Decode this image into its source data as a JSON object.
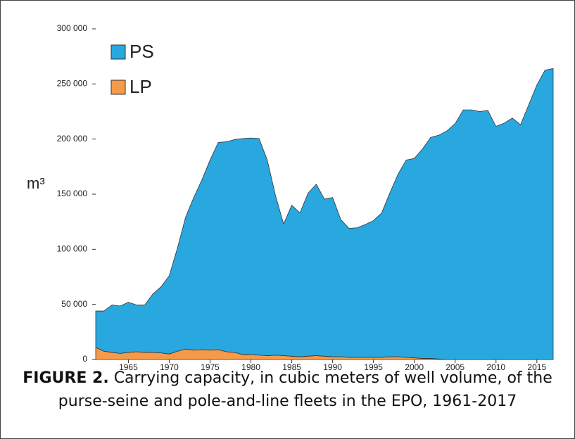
{
  "chart_data": {
    "type": "stacked_area",
    "y_label": "m³",
    "x": [
      1961,
      1962,
      1963,
      1964,
      1965,
      1966,
      1967,
      1968,
      1969,
      1970,
      1971,
      1972,
      1973,
      1974,
      1975,
      1976,
      1977,
      1978,
      1979,
      1980,
      1981,
      1982,
      1983,
      1984,
      1985,
      1986,
      1987,
      1988,
      1989,
      1990,
      1991,
      1992,
      1993,
      1994,
      1995,
      1996,
      1997,
      1998,
      1999,
      2000,
      2001,
      2002,
      2003,
      2004,
      2005,
      2006,
      2007,
      2008,
      2009,
      2010,
      2011,
      2012,
      2013,
      2014,
      2015,
      2016,
      2017
    ],
    "series": [
      {
        "name": "PS",
        "color": "#29a8e0",
        "values": [
          33000,
          36500,
          43000,
          43000,
          45500,
          42500,
          43000,
          53000,
          60000,
          71000,
          93500,
          119500,
          138500,
          154000,
          172500,
          188000,
          190500,
          193000,
          196000,
          196500,
          196500,
          177500,
          145000,
          119500,
          137000,
          130500,
          148000,
          155500,
          142500,
          144500,
          124500,
          117000,
          117500,
          120500,
          124000,
          131000,
          148500,
          165500,
          179000,
          181000,
          190000,
          200500,
          203000,
          207500,
          214000,
          226500,
          226500,
          225000,
          226000,
          211500,
          214500,
          219000,
          213000,
          231000,
          249000,
          262500,
          264000
        ]
      },
      {
        "name": "LP",
        "color": "#f59a4a",
        "values": [
          11000,
          7500,
          6500,
          5500,
          6500,
          7000,
          6500,
          6500,
          6000,
          5000,
          7500,
          9500,
          8500,
          9000,
          8500,
          9000,
          7000,
          6500,
          4500,
          4500,
          4000,
          3500,
          4000,
          3500,
          3000,
          2500,
          3000,
          3500,
          3000,
          2500,
          2500,
          2000,
          2000,
          2000,
          2000,
          2000,
          2500,
          2500,
          2000,
          1500,
          1000,
          1000,
          500,
          0,
          0,
          0,
          0,
          0,
          0,
          0,
          0,
          0,
          0,
          0,
          0,
          0,
          0
        ]
      }
    ],
    "xlim": [
      1961,
      2017
    ],
    "xticks": [
      1965,
      1970,
      1975,
      1980,
      1985,
      1990,
      1995,
      2000,
      2005,
      2010,
      2015
    ],
    "ylim": [
      0,
      300000
    ],
    "yticks": [
      0,
      {
        "value": 50000,
        "label": "50 000"
      },
      {
        "value": 100000,
        "label": "100 000"
      },
      {
        "value": 150000,
        "label": "150 000"
      },
      {
        "value": 200000,
        "label": "200 000"
      },
      {
        "value": 250000,
        "label": "250 000"
      },
      {
        "value": 300000,
        "label": "300 000"
      }
    ],
    "legend": "upper left"
  },
  "caption": {
    "label": "FIGURE 2.",
    "text": "Carrying capacity, in cubic meters of well volume, of the purse-seine and pole-and-line fleets in the EPO, 1961-2017"
  }
}
